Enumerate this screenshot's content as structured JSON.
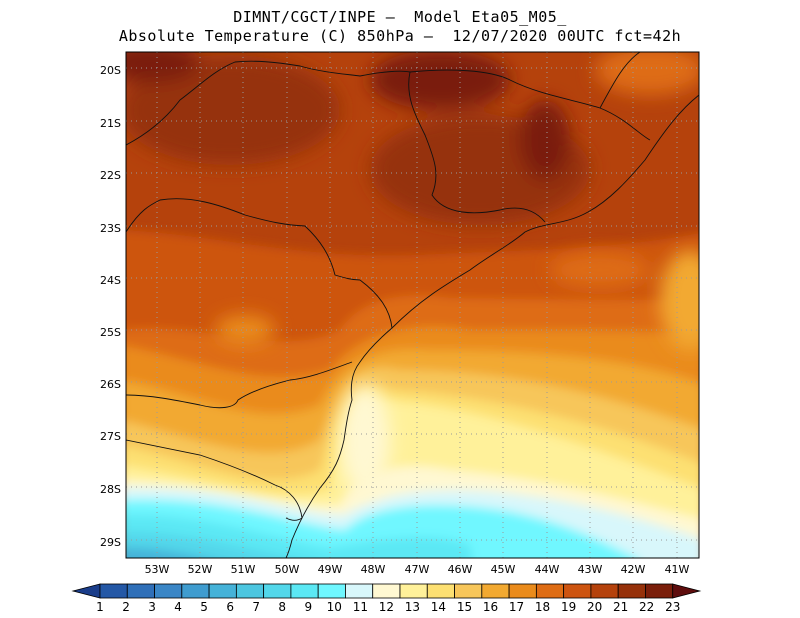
{
  "header": {
    "line1": "DIMNT/CGCT/INPE –  Model Eta05_M05_",
    "line2": "Absolute Temperature (C) 850hPa –  12/07/2020 00UTC fct=42h"
  },
  "map": {
    "lat_labels": [
      "20S",
      "21S",
      "22S",
      "23S",
      "24S",
      "25S",
      "26S",
      "27S",
      "28S",
      "29S"
    ],
    "lon_labels": [
      "53W",
      "52W",
      "51W",
      "50W",
      "49W",
      "48W",
      "47W",
      "46W",
      "45W",
      "44W",
      "43W",
      "42W",
      "41W"
    ]
  },
  "colorbar": {
    "labels": [
      "1",
      "2",
      "3",
      "4",
      "5",
      "6",
      "7",
      "8",
      "9",
      "10",
      "11",
      "12",
      "13",
      "14",
      "15",
      "16",
      "17",
      "18",
      "19",
      "20",
      "21",
      "22",
      "23"
    ],
    "colors": [
      "#1a3d8a",
      "#2458a6",
      "#2f6fb8",
      "#3a86c6",
      "#3f9ccf",
      "#45b2d8",
      "#4cc6e0",
      "#52d7ea",
      "#5be8f4",
      "#6ff7ff",
      "#d8f7fb",
      "#fff8d2",
      "#fff19a",
      "#fde072",
      "#f7c65a",
      "#f2a931",
      "#ea8b1b",
      "#de6c14",
      "#cd5410",
      "#b5420c",
      "#96310a",
      "#7a1e0a",
      "#5e0d0d"
    ]
  }
}
